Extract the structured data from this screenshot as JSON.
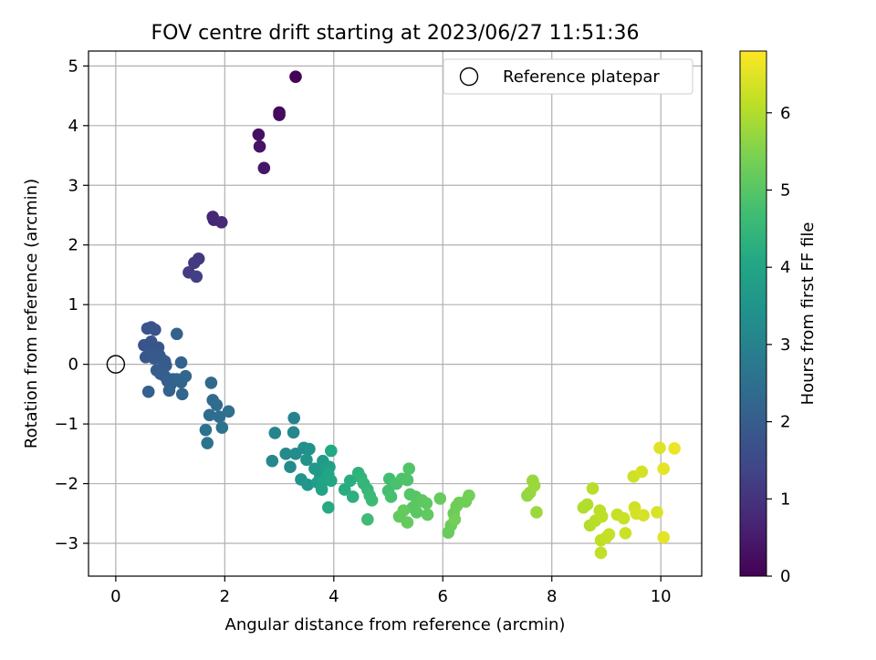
{
  "chart_data": {
    "type": "scatter",
    "title": "FOV centre drift starting at 2023/06/27 11:51:36",
    "xlabel": "Angular distance from reference (arcmin)",
    "ylabel": "Rotation from reference (arcmin)",
    "xlim": [
      -0.5,
      10.75
    ],
    "ylim": [
      -3.55,
      5.25
    ],
    "x_ticks": [
      "0",
      "2",
      "4",
      "6",
      "8",
      "10"
    ],
    "y_ticks": [
      "5",
      "4",
      "3",
      "2",
      "1",
      "0",
      "−1",
      "−2",
      "−3"
    ],
    "grid": true,
    "legend_position": "top-right",
    "reference": {
      "label": "Reference platepar",
      "x": 0,
      "y": 0
    },
    "colorbar": {
      "label": "Hours from first FF file",
      "colormap": "viridis",
      "range": [
        0,
        6.8
      ],
      "ticks": [
        "0",
        "1",
        "2",
        "3",
        "4",
        "5",
        "6"
      ]
    },
    "points": [
      [
        3.3,
        4.82,
        0.05
      ],
      [
        3.0,
        4.22,
        0.15
      ],
      [
        3.0,
        4.18,
        0.2
      ],
      [
        2.62,
        3.85,
        0.3
      ],
      [
        2.64,
        3.65,
        0.35
      ],
      [
        2.72,
        3.29,
        0.4
      ],
      [
        1.78,
        2.47,
        0.7
      ],
      [
        1.8,
        2.42,
        0.75
      ],
      [
        1.94,
        2.38,
        0.8
      ],
      [
        1.52,
        1.77,
        1.1
      ],
      [
        1.44,
        1.7,
        1.15
      ],
      [
        1.34,
        1.54,
        1.2
      ],
      [
        1.48,
        1.47,
        1.25
      ],
      [
        0.65,
        0.62,
        1.7
      ],
      [
        0.72,
        0.58,
        1.72
      ],
      [
        0.58,
        0.6,
        1.74
      ],
      [
        0.52,
        0.32,
        1.76
      ],
      [
        0.65,
        0.38,
        1.78
      ],
      [
        0.72,
        0.25,
        1.8
      ],
      [
        0.78,
        0.28,
        1.82
      ],
      [
        0.55,
        0.12,
        1.84
      ],
      [
        0.62,
        0.18,
        1.86
      ],
      [
        0.7,
        0.1,
        1.88
      ],
      [
        0.8,
        0.15,
        1.9
      ],
      [
        0.85,
        0.08,
        1.92
      ],
      [
        0.9,
        0.05,
        1.94
      ],
      [
        0.92,
        -0.02,
        1.96
      ],
      [
        0.75,
        -0.1,
        1.98
      ],
      [
        0.82,
        -0.16,
        2.0
      ],
      [
        0.9,
        -0.2,
        2.02
      ],
      [
        0.95,
        -0.28,
        2.04
      ],
      [
        1.0,
        -0.35,
        2.06
      ],
      [
        1.05,
        -0.25,
        2.08
      ],
      [
        0.6,
        -0.46,
        2.1
      ],
      [
        0.98,
        -0.44,
        2.12
      ],
      [
        1.12,
        0.51,
        2.14
      ],
      [
        1.2,
        0.03,
        2.16
      ],
      [
        1.12,
        -0.25,
        2.18
      ],
      [
        1.2,
        -0.3,
        2.2
      ],
      [
        1.28,
        -0.2,
        2.22
      ],
      [
        1.22,
        -0.5,
        2.24
      ],
      [
        1.75,
        -0.31,
        2.3
      ],
      [
        1.78,
        -0.6,
        2.34
      ],
      [
        1.85,
        -0.68,
        2.38
      ],
      [
        1.72,
        -0.85,
        2.42
      ],
      [
        1.9,
        -0.88,
        2.46
      ],
      [
        2.07,
        -0.79,
        2.5
      ],
      [
        1.65,
        -1.1,
        2.54
      ],
      [
        1.95,
        -1.06,
        2.58
      ],
      [
        1.68,
        -1.32,
        2.62
      ],
      [
        3.27,
        -0.9,
        3.0
      ],
      [
        2.92,
        -1.15,
        3.05
      ],
      [
        3.26,
        -1.14,
        3.1
      ],
      [
        2.87,
        -1.62,
        3.15
      ],
      [
        3.12,
        -1.5,
        3.2
      ],
      [
        3.2,
        -1.72,
        3.25
      ],
      [
        3.3,
        -1.5,
        3.3
      ],
      [
        3.45,
        -1.4,
        3.35
      ],
      [
        3.55,
        -1.42,
        3.4
      ],
      [
        3.5,
        -1.6,
        3.45
      ],
      [
        3.4,
        -1.93,
        3.5
      ],
      [
        3.52,
        -2.02,
        3.55
      ],
      [
        3.65,
        -1.75,
        3.6
      ],
      [
        3.75,
        -1.88,
        3.65
      ],
      [
        3.8,
        -1.62,
        3.7
      ],
      [
        3.85,
        -1.75,
        3.75
      ],
      [
        3.92,
        -1.72,
        3.8
      ],
      [
        3.7,
        -1.98,
        3.85
      ],
      [
        3.78,
        -2.1,
        3.9
      ],
      [
        3.82,
        -1.95,
        3.95
      ],
      [
        3.9,
        -1.85,
        4.0
      ],
      [
        3.95,
        -1.95,
        4.05
      ],
      [
        3.95,
        -1.45,
        4.1
      ],
      [
        3.9,
        -2.4,
        4.15
      ],
      [
        4.2,
        -2.1,
        4.2
      ],
      [
        4.3,
        -1.95,
        4.25
      ],
      [
        4.35,
        -2.22,
        4.3
      ],
      [
        4.45,
        -1.82,
        4.35
      ],
      [
        4.5,
        -1.9,
        4.4
      ],
      [
        4.55,
        -2.0,
        4.45
      ],
      [
        4.62,
        -2.1,
        4.5
      ],
      [
        4.66,
        -2.2,
        4.55
      ],
      [
        4.7,
        -2.28,
        4.6
      ],
      [
        4.62,
        -2.6,
        4.65
      ],
      [
        5.02,
        -1.92,
        4.7
      ],
      [
        5.0,
        -2.12,
        4.74
      ],
      [
        5.05,
        -2.22,
        4.78
      ],
      [
        5.15,
        -2.0,
        4.82
      ],
      [
        5.25,
        -1.92,
        4.86
      ],
      [
        5.35,
        -1.94,
        4.9
      ],
      [
        5.38,
        -1.75,
        4.94
      ],
      [
        5.4,
        -2.18,
        4.98
      ],
      [
        5.5,
        -2.22,
        5.0
      ],
      [
        5.55,
        -2.3,
        5.02
      ],
      [
        5.45,
        -2.4,
        5.04
      ],
      [
        5.52,
        -2.48,
        5.06
      ],
      [
        5.62,
        -2.28,
        5.08
      ],
      [
        5.7,
        -2.33,
        5.1
      ],
      [
        5.72,
        -2.52,
        5.12
      ],
      [
        5.2,
        -2.55,
        5.14
      ],
      [
        5.28,
        -2.45,
        5.16
      ],
      [
        5.35,
        -2.65,
        5.18
      ],
      [
        5.95,
        -2.25,
        5.2
      ],
      [
        6.1,
        -2.82,
        5.22
      ],
      [
        6.15,
        -2.7,
        5.24
      ],
      [
        6.2,
        -2.5,
        5.26
      ],
      [
        6.25,
        -2.38,
        5.28
      ],
      [
        6.3,
        -2.32,
        5.3
      ],
      [
        6.42,
        -2.3,
        5.32
      ],
      [
        6.48,
        -2.2,
        5.34
      ],
      [
        6.22,
        -2.6,
        5.36
      ],
      [
        7.55,
        -2.2,
        5.7
      ],
      [
        7.6,
        -2.15,
        5.72
      ],
      [
        7.65,
        -1.95,
        5.74
      ],
      [
        7.68,
        -2.03,
        5.76
      ],
      [
        7.72,
        -2.48,
        5.78
      ],
      [
        8.58,
        -2.4,
        6.0
      ],
      [
        8.65,
        -2.35,
        6.02
      ],
      [
        8.7,
        -2.7,
        6.04
      ],
      [
        8.75,
        -2.08,
        6.06
      ],
      [
        8.8,
        -2.62,
        6.08
      ],
      [
        8.88,
        -2.45,
        6.1
      ],
      [
        8.92,
        -2.55,
        6.12
      ],
      [
        8.9,
        -2.95,
        6.14
      ],
      [
        8.9,
        -3.16,
        6.16
      ],
      [
        9.0,
        -2.9,
        6.18
      ],
      [
        9.05,
        -2.85,
        6.2
      ],
      [
        9.2,
        -2.52,
        6.22
      ],
      [
        9.32,
        -2.58,
        6.24
      ],
      [
        9.35,
        -2.83,
        6.26
      ],
      [
        9.5,
        -1.88,
        6.3
      ],
      [
        9.52,
        -2.4,
        6.32
      ],
      [
        9.55,
        -2.5,
        6.34
      ],
      [
        9.65,
        -1.8,
        6.36
      ],
      [
        9.68,
        -2.53,
        6.38
      ],
      [
        9.93,
        -2.48,
        6.42
      ],
      [
        9.98,
        -1.4,
        6.48
      ],
      [
        10.05,
        -2.9,
        6.52
      ],
      [
        10.05,
        -1.75,
        6.56
      ],
      [
        10.25,
        -1.41,
        6.62
      ]
    ]
  }
}
